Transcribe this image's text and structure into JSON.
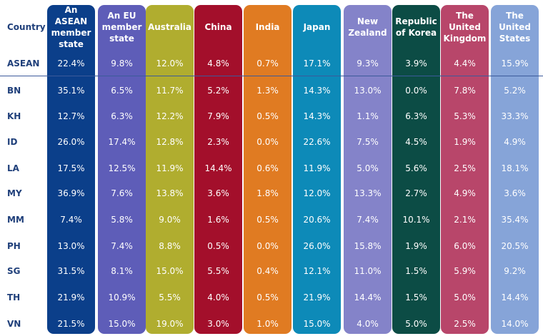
{
  "chart_data": {
    "type": "table",
    "row_header_label": "Country",
    "columns": [
      {
        "label": "An ASEAN member state",
        "color": "#0b3f8a"
      },
      {
        "label": "An EU member state",
        "color": "#5e5db8"
      },
      {
        "label": "Australia",
        "color": "#b0ad2f"
      },
      {
        "label": "China",
        "color": "#a30f2b"
      },
      {
        "label": "India",
        "color": "#e07b22"
      },
      {
        "label": "Japan",
        "color": "#0d8ab8"
      },
      {
        "label": "New Zealand",
        "color": "#8483c9"
      },
      {
        "label": "Republic of Korea",
        "color": "#0c4c45"
      },
      {
        "label": "The United Kingdom",
        "color": "#b8466a"
      },
      {
        "label": "The United States",
        "color": "#86a4d8"
      }
    ],
    "rows": [
      {
        "country": "ASEAN",
        "values": [
          "22.4%",
          "9.8%",
          "12.0%",
          "4.8%",
          "0.7%",
          "17.1%",
          "9.3%",
          "3.9%",
          "4.4%",
          "15.9%"
        ]
      },
      {
        "country": "BN",
        "values": [
          "35.1%",
          "6.5%",
          "11.7%",
          "5.2%",
          "1.3%",
          "14.3%",
          "13.0%",
          "0.0%",
          "7.8%",
          "5.2%"
        ]
      },
      {
        "country": "KH",
        "values": [
          "12.7%",
          "6.3%",
          "12.2%",
          "7.9%",
          "0.5%",
          "14.3%",
          "1.1%",
          "6.3%",
          "5.3%",
          "33.3%"
        ]
      },
      {
        "country": "ID",
        "values": [
          "26.0%",
          "17.4%",
          "12.8%",
          "2.3%",
          "0.0%",
          "22.6%",
          "7.5%",
          "4.5%",
          "1.9%",
          "4.9%"
        ]
      },
      {
        "country": "LA",
        "values": [
          "17.5%",
          "12.5%",
          "11.9%",
          "14.4%",
          "0.6%",
          "11.9%",
          "5.0%",
          "5.6%",
          "2.5%",
          "18.1%"
        ]
      },
      {
        "country": "MY",
        "values": [
          "36.9%",
          "7.6%",
          "13.8%",
          "3.6%",
          "1.8%",
          "12.0%",
          "13.3%",
          "2.7%",
          "4.9%",
          "3.6%"
        ]
      },
      {
        "country": "MM",
        "values": [
          "7.4%",
          "5.8%",
          "9.0%",
          "1.6%",
          "0.5%",
          "20.6%",
          "7.4%",
          "10.1%",
          "2.1%",
          "35.4%"
        ]
      },
      {
        "country": "PH",
        "values": [
          "13.0%",
          "7.4%",
          "8.8%",
          "0.5%",
          "0.0%",
          "26.0%",
          "15.8%",
          "1.9%",
          "6.0%",
          "20.5%"
        ]
      },
      {
        "country": "SG",
        "values": [
          "31.5%",
          "8.1%",
          "15.0%",
          "5.5%",
          "0.4%",
          "12.1%",
          "11.0%",
          "1.5%",
          "5.9%",
          "9.2%"
        ]
      },
      {
        "country": "TH",
        "values": [
          "21.9%",
          "10.9%",
          "5.5%",
          "4.0%",
          "0.5%",
          "21.9%",
          "14.4%",
          "1.5%",
          "5.0%",
          "14.4%"
        ]
      },
      {
        "country": "VN",
        "values": [
          "21.5%",
          "15.0%",
          "19.0%",
          "3.0%",
          "1.0%",
          "15.0%",
          "4.0%",
          "5.0%",
          "2.5%",
          "14.0%"
        ]
      }
    ],
    "separator_color": "#3b5a9a"
  }
}
